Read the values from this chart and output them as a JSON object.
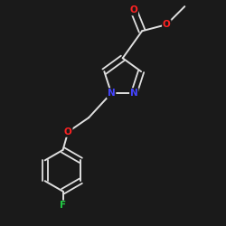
{
  "background_color": "#1a1a1a",
  "bond_color": "#e0e0e0",
  "atom_colors": {
    "N": "#4444ff",
    "O": "#ff2222",
    "F": "#22cc44",
    "C": "#e0e0e0"
  },
  "figsize": [
    2.5,
    2.5
  ],
  "dpi": 100,
  "xlim": [
    -1.5,
    1.5
  ],
  "ylim": [
    -2.0,
    1.5
  ]
}
